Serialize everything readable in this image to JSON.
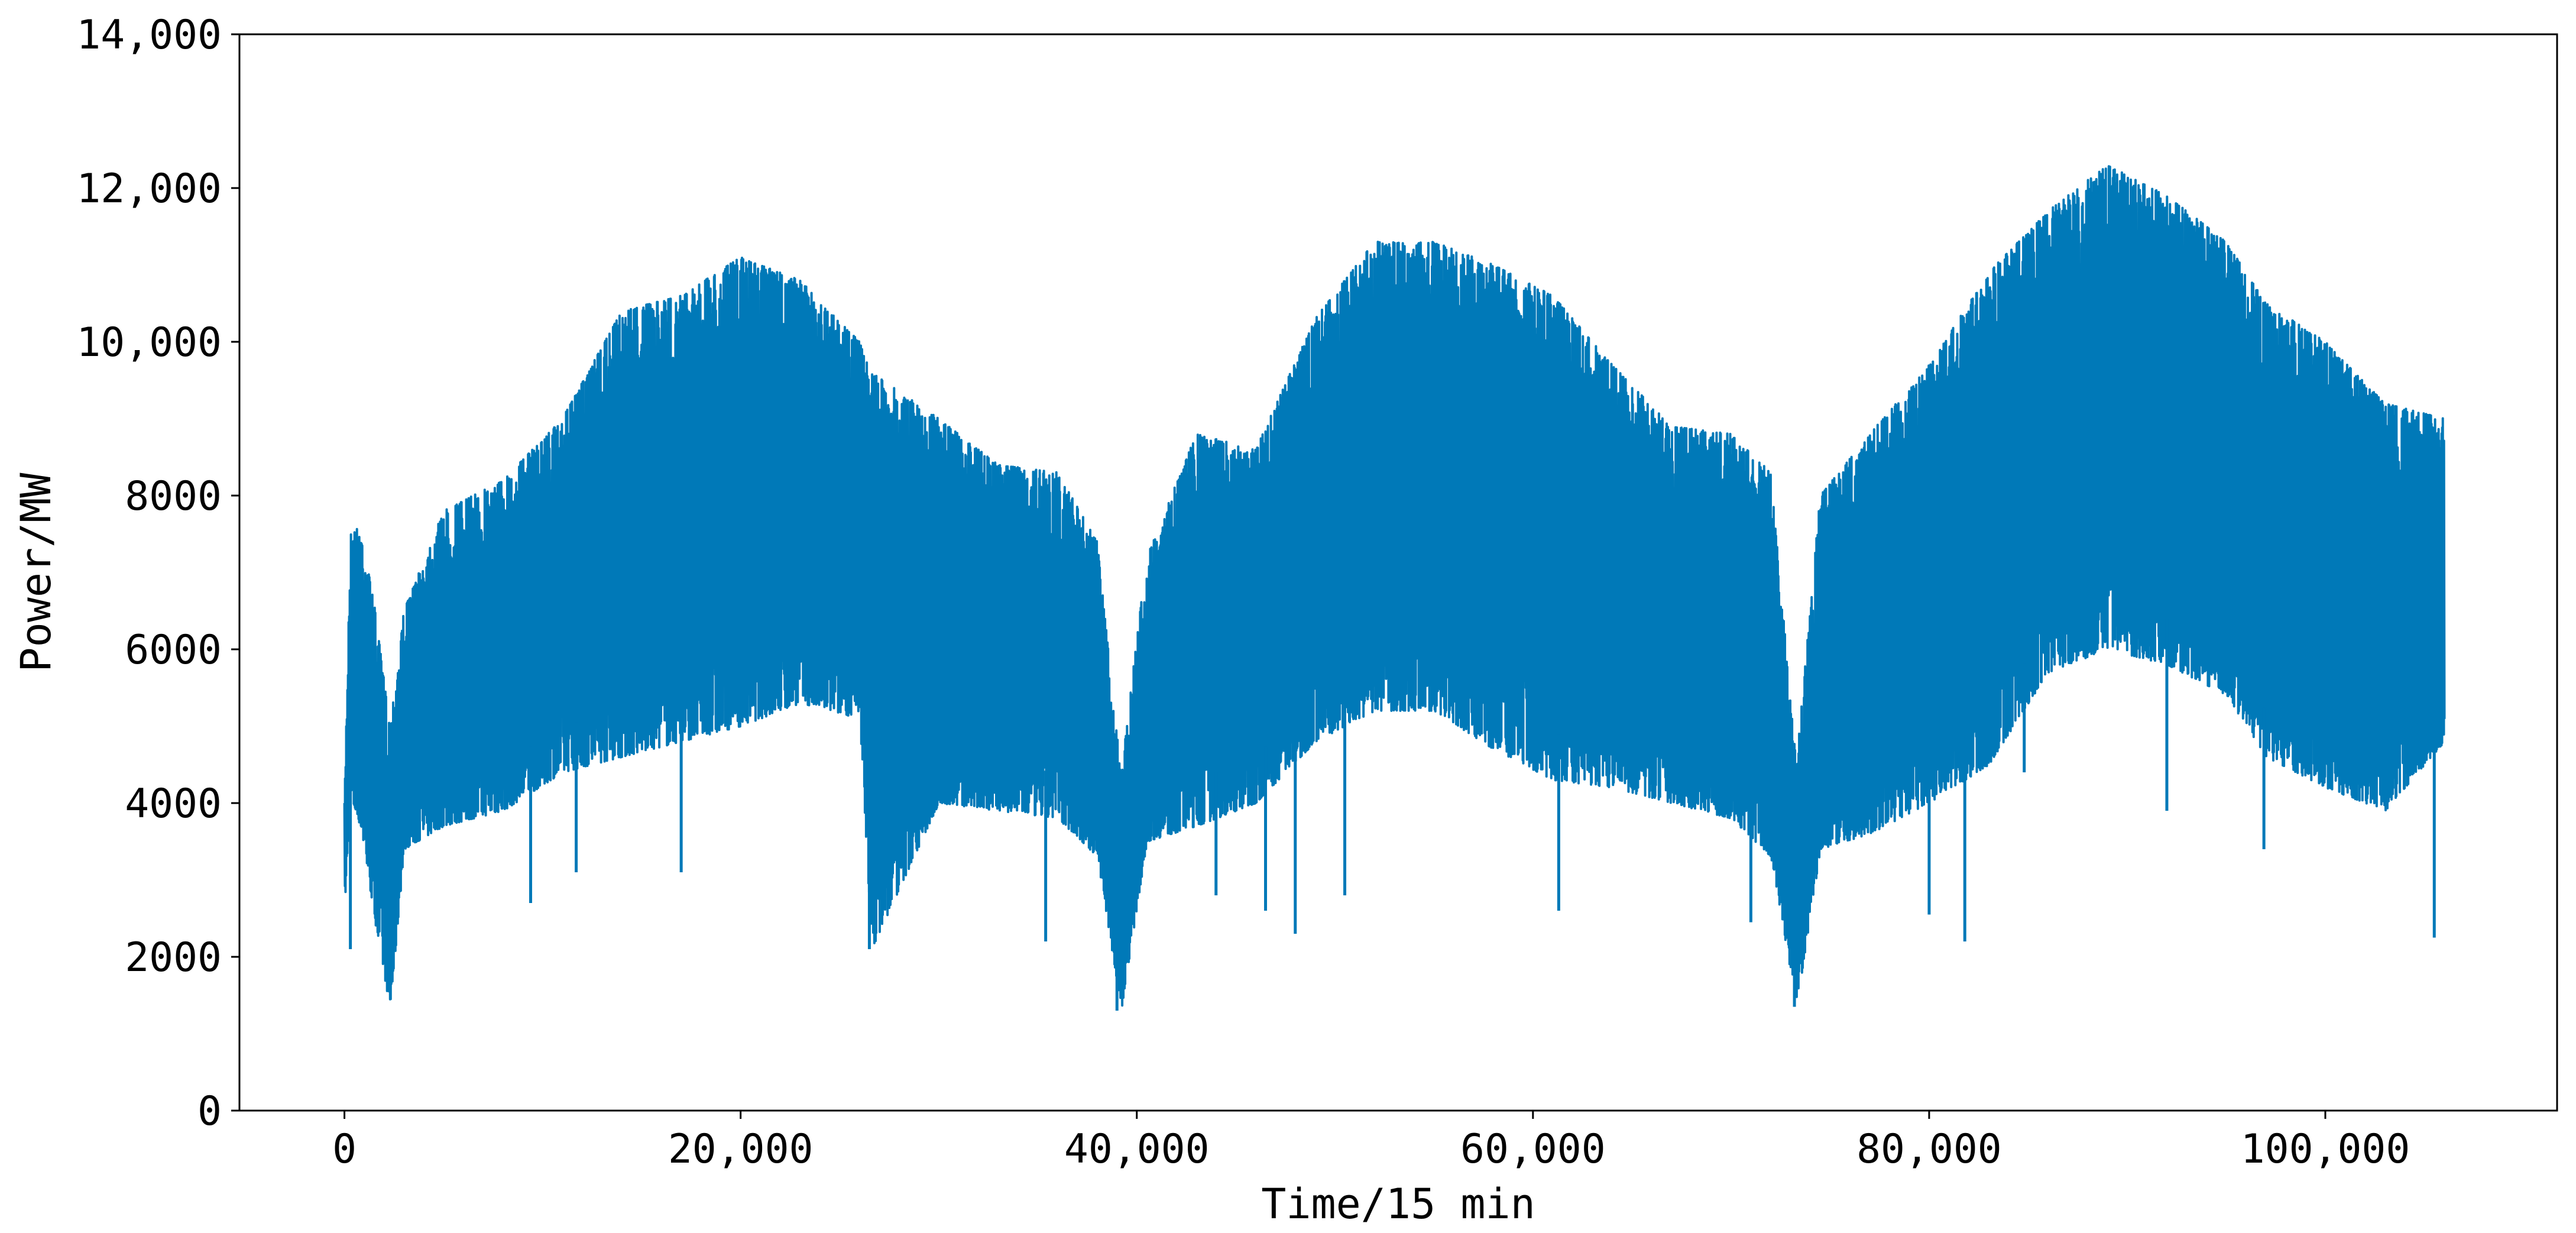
{
  "chart_data": {
    "type": "line",
    "title": "",
    "xlabel": "Time/15 min",
    "ylabel": "Power/MW",
    "xlim": [
      -5300,
      111700
    ],
    "ylim": [
      0,
      14000
    ],
    "x_ticks": [
      0,
      20000,
      40000,
      60000,
      80000,
      100000
    ],
    "x_tick_labels": [
      "0",
      "20,000",
      "40,000",
      "60,000",
      "80,000",
      "100,000"
    ],
    "y_ticks": [
      0,
      2000,
      4000,
      6000,
      8000,
      10000,
      12000,
      14000
    ],
    "y_tick_labels": [
      "0",
      "2000",
      "4000",
      "6000",
      "8000",
      "10,000",
      "12,000",
      "14,000"
    ],
    "grid": false,
    "legend": "none",
    "colors": {
      "series": "#0079B8",
      "axis": "#000000",
      "background": "#FFFFFF"
    },
    "series": [
      {
        "note_visible": "15-minute load series spanning ~0 to ~106,000 intervals, three yearly cycles",
        "envelope": {
          "x": [
            0,
            300,
            800,
            1500,
            2300,
            3000,
            5000,
            8000,
            11000,
            14000,
            17000,
            20000,
            23000,
            26000,
            26600,
            30000,
            33000,
            36000,
            38000,
            39200,
            40500,
            43000,
            46000,
            49000,
            52000,
            55000,
            58000,
            61000,
            64000,
            67000,
            70000,
            72000,
            73300,
            74500,
            77000,
            80000,
            83000,
            86000,
            89000,
            92000,
            95000,
            97000,
            100000,
            103000,
            106000
          ],
          "upper": [
            4000,
            7500,
            7600,
            6600,
            5000,
            6500,
            7800,
            8200,
            9000,
            10400,
            10600,
            11100,
            10800,
            10000,
            9600,
            9000,
            8400,
            8300,
            7400,
            4400,
            7200,
            8800,
            8600,
            10300,
            11300,
            11300,
            11000,
            10600,
            9700,
            8900,
            8800,
            8300,
            4500,
            8000,
            8800,
            9700,
            10900,
            11700,
            12300,
            11900,
            11300,
            10500,
            10000,
            9200,
            9000
          ],
          "lower": [
            2700,
            4000,
            3700,
            2500,
            1300,
            3400,
            3700,
            3900,
            4400,
            4600,
            4800,
            5000,
            5300,
            5100,
            2100,
            4000,
            3900,
            3800,
            3300,
            1300,
            3500,
            3700,
            4000,
            4800,
            5200,
            5200,
            4700,
            4300,
            4200,
            4000,
            3800,
            3300,
            1350,
            3400,
            3600,
            4000,
            4500,
            5700,
            6000,
            5800,
            5400,
            4600,
            4200,
            3900,
            4800
          ],
          "dips": [
            [
              300,
              2100
            ],
            [
              9400,
              2700
            ],
            [
              11700,
              3100
            ],
            [
              17000,
              3100
            ],
            [
              26500,
              2100
            ],
            [
              35400,
              2200
            ],
            [
              39000,
              1300
            ],
            [
              44000,
              2800
            ],
            [
              46500,
              2600
            ],
            [
              48000,
              2300
            ],
            [
              50500,
              2800
            ],
            [
              61300,
              2600
            ],
            [
              71000,
              2450
            ],
            [
              73200,
              1350
            ],
            [
              80000,
              2550
            ],
            [
              81800,
              2200
            ],
            [
              84800,
              4400
            ],
            [
              92000,
              3900
            ],
            [
              96900,
              3400
            ],
            [
              105500,
              2250
            ]
          ]
        }
      }
    ]
  }
}
